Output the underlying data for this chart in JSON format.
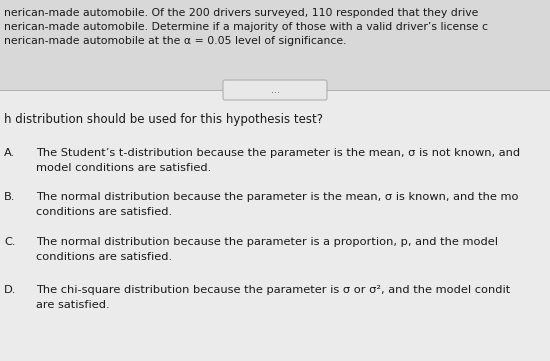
{
  "bg_color": "#e8e8e8",
  "top_bg_color": "#e0e0e0",
  "bottom_bg_color": "#f0f0f0",
  "top_text_lines": [
    "nerican-made automobile. Of the 200 drivers surveyed, 110 responded that they drive",
    "nerican-made automobile. Determine if a majority of those with a valid driver’s license c",
    "nerican-made automobile at the α = 0.05 level of significance."
  ],
  "divider_dots": "⋯",
  "question_line": "h distribution should be used for this hypothesis test?",
  "options": [
    {
      "label": "A.",
      "line1": "The Student’s t-distribution because the parameter is the mean, σ is not known, and",
      "line2": "model conditions are satisfied."
    },
    {
      "label": "B.",
      "line1": "The normal distribution because the parameter is the mean, σ is known, and the mo",
      "line2": "conditions are satisfied."
    },
    {
      "label": "C.",
      "line1": "The normal distribution because the parameter is a proportion, p, and the model",
      "line2": "conditions are satisfied."
    },
    {
      "label": "D.",
      "line1": "The chi-square distribution because the parameter is σ or σ², and the model condit",
      "line2": "are satisfied."
    }
  ],
  "font_size_top": 7.8,
  "font_size_question": 8.5,
  "font_size_options": 8.2,
  "text_color": "#1a1a1a",
  "divider_color": "#b0b0b0"
}
